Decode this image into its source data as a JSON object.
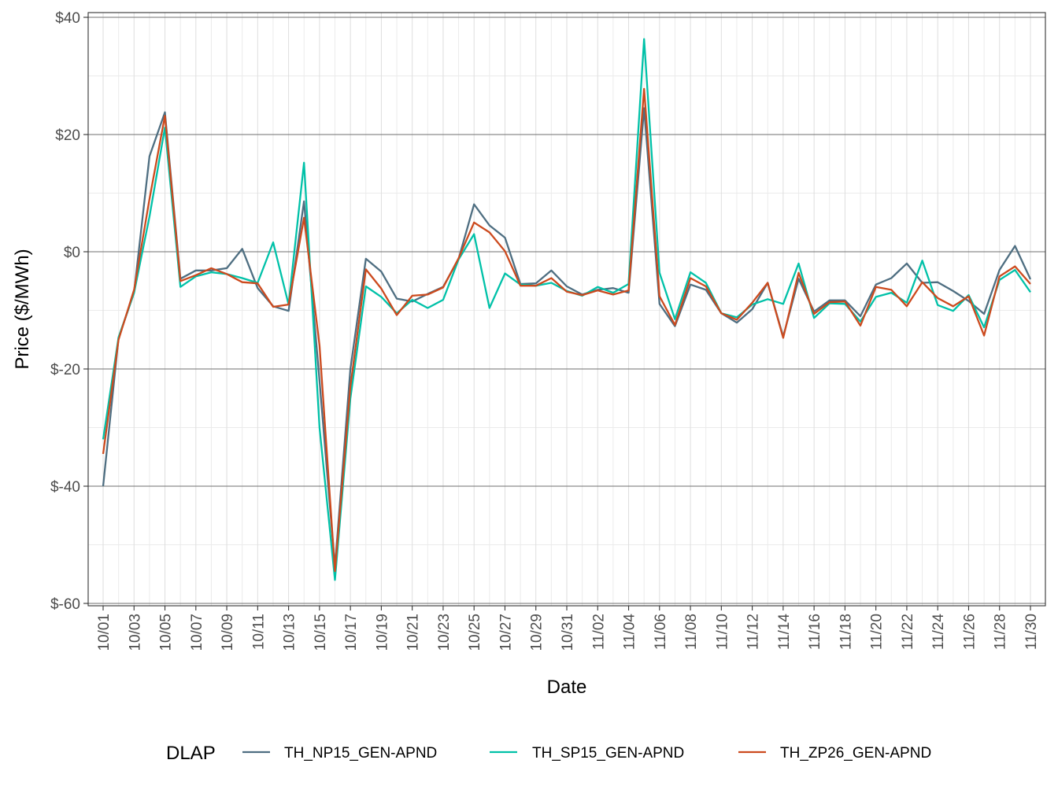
{
  "chart_data": {
    "type": "line",
    "title": "",
    "xlabel": "Date",
    "ylabel": "Price ($/MWh)",
    "ylim": [
      -60,
      40
    ],
    "y_ticks": [
      {
        "value": 40,
        "label": "$40"
      },
      {
        "value": 20,
        "label": "$20"
      },
      {
        "value": 0,
        "label": "$0"
      },
      {
        "value": -20,
        "label": "$-20"
      },
      {
        "value": -40,
        "label": "$-40"
      },
      {
        "value": -60,
        "label": "$-60"
      }
    ],
    "x": [
      "10/01",
      "10/02",
      "10/03",
      "10/04",
      "10/05",
      "10/06",
      "10/07",
      "10/08",
      "10/09",
      "10/10",
      "10/11",
      "10/12",
      "10/13",
      "10/14",
      "10/15",
      "10/16",
      "10/17",
      "10/18",
      "10/19",
      "10/20",
      "10/21",
      "10/22",
      "10/23",
      "10/24",
      "10/25",
      "10/26",
      "10/27",
      "10/28",
      "10/29",
      "10/30",
      "10/31",
      "11/01",
      "11/02",
      "11/03",
      "11/04",
      "11/05",
      "11/06",
      "11/07",
      "11/08",
      "11/09",
      "11/10",
      "11/11",
      "11/12",
      "11/13",
      "11/14",
      "11/15",
      "11/16",
      "11/17",
      "11/18",
      "11/19",
      "11/20",
      "11/21",
      "11/22",
      "11/23",
      "11/24",
      "11/25",
      "11/26",
      "11/27",
      "11/28",
      "11/29",
      "11/30"
    ],
    "x_tick_labels": [
      "10/01",
      "10/03",
      "10/05",
      "10/07",
      "10/09",
      "10/11",
      "10/13",
      "10/15",
      "10/17",
      "10/19",
      "10/21",
      "10/23",
      "10/25",
      "10/27",
      "10/29",
      "10/31",
      "11/02",
      "11/04",
      "11/06",
      "11/08",
      "11/10",
      "11/12",
      "11/14",
      "11/16",
      "11/18",
      "11/20",
      "11/22",
      "11/24",
      "11/26",
      "11/28",
      "11/30"
    ],
    "legend_title": "DLAP",
    "legend_position": "bottom",
    "series": [
      {
        "name": "TH_NP15_GEN-APND",
        "color": "#4e6e81",
        "values": [
          -40,
          -14.7,
          -7,
          16.3,
          23.8,
          -4.6,
          -3.2,
          -3.2,
          -2.8,
          0.5,
          -6.2,
          -9.3,
          -10.1,
          8.6,
          -22,
          -53.8,
          -20,
          -1.2,
          -3.4,
          -8,
          -8.5,
          -7.2,
          -6,
          -1.2,
          8.1,
          4.5,
          2.4,
          -5.5,
          -5.4,
          -3.2,
          -5.9,
          -7.3,
          -6.5,
          -6.2,
          -7,
          24.5,
          -8.9,
          -12.7,
          -5.6,
          -6.5,
          -10.5,
          -12.1,
          -9.8,
          -5.3,
          -14.5,
          -4.6,
          -10.2,
          -8.3,
          -8.3,
          -11,
          -5.6,
          -4.5,
          -2,
          -5.3,
          -5.2,
          -6.7,
          -8.4,
          -10.6,
          -3.1,
          1,
          -4.7
        ]
      },
      {
        "name": "TH_SP15_GEN-APND",
        "color": "#00c1a8",
        "values": [
          -32,
          -14.6,
          -7,
          6,
          21.2,
          -6,
          -4.2,
          -3.5,
          -3.8,
          -4.5,
          -5.3,
          1.6,
          -9,
          15.2,
          -30,
          -56,
          -25,
          -5.9,
          -7.7,
          -10.5,
          -8.2,
          -9.6,
          -8.2,
          -1.3,
          3,
          -9.6,
          -3.7,
          -5.6,
          -5.8,
          -5.3,
          -6.7,
          -7.5,
          -6,
          -7,
          -5.5,
          36.3,
          -3.6,
          -11.5,
          -3.5,
          -5.3,
          -10.5,
          -11.2,
          -9,
          -8.1,
          -8.9,
          -2,
          -11.3,
          -8.8,
          -8.9,
          -11.9,
          -7.7,
          -7,
          -8.7,
          -1.5,
          -9.1,
          -10.1,
          -7.4,
          -12.9,
          -4.8,
          -3.1,
          -6.9
        ]
      },
      {
        "name": "TH_ZP26_GEN-APND",
        "color": "#cc4a1e",
        "values": [
          -34.5,
          -15,
          -6.5,
          9,
          23.2,
          -5,
          -4,
          -2.8,
          -3.8,
          -5.2,
          -5.4,
          -9.4,
          -9,
          5.8,
          -16,
          -54.5,
          -23,
          -3,
          -6.3,
          -10.8,
          -7.5,
          -7.3,
          -6.1,
          -1.1,
          5,
          3.3,
          0.1,
          -5.8,
          -5.8,
          -4.5,
          -6.8,
          -7.4,
          -6.6,
          -7.3,
          -6.6,
          27.8,
          -7.6,
          -12.5,
          -4.5,
          -5.9,
          -10.5,
          -11.6,
          -8.7,
          -5.3,
          -14.7,
          -3.6,
          -10.6,
          -8.6,
          -8.5,
          -12.6,
          -6,
          -6.5,
          -9.3,
          -5.2,
          -7.9,
          -9.3,
          -7.6,
          -14.3,
          -4.2,
          -2.5,
          -5.5
        ]
      }
    ]
  }
}
